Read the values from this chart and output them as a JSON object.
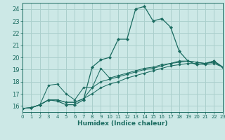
{
  "xlabel": "Humidex (Indice chaleur)",
  "xlim": [
    0,
    23
  ],
  "ylim": [
    15.5,
    24.5
  ],
  "xticks": [
    0,
    1,
    2,
    3,
    4,
    5,
    6,
    7,
    8,
    9,
    10,
    11,
    12,
    13,
    14,
    15,
    16,
    17,
    18,
    19,
    20,
    21,
    22,
    23
  ],
  "yticks": [
    16,
    17,
    18,
    19,
    20,
    21,
    22,
    23,
    24
  ],
  "bg_color": "#cce8e6",
  "grid_color": "#aacfcc",
  "line_color": "#1a6b60",
  "lines": [
    {
      "x": [
        0,
        1,
        2,
        3,
        4,
        5,
        6,
        7,
        8,
        9,
        10,
        11,
        12,
        13,
        14,
        15,
        16,
        17,
        18,
        19,
        20,
        21,
        22,
        23
      ],
      "y": [
        15.8,
        15.85,
        16.1,
        16.5,
        16.4,
        16.1,
        16.1,
        16.5,
        19.2,
        19.8,
        20.0,
        21.5,
        21.5,
        24.0,
        24.2,
        23.0,
        23.2,
        22.5,
        20.5,
        19.7,
        19.4,
        19.5,
        19.7,
        19.2
      ]
    },
    {
      "x": [
        0,
        1,
        2,
        3,
        4,
        5,
        6,
        7,
        8,
        9,
        10,
        11,
        12,
        13,
        14,
        15,
        16,
        17,
        18,
        19,
        20,
        21,
        22,
        23
      ],
      "y": [
        15.8,
        15.85,
        16.1,
        17.7,
        17.8,
        17.0,
        16.5,
        17.5,
        17.5,
        19.1,
        18.3,
        18.5,
        18.7,
        18.9,
        19.1,
        19.2,
        19.4,
        19.5,
        19.7,
        19.7,
        19.6,
        19.5,
        19.7,
        19.2
      ]
    },
    {
      "x": [
        0,
        1,
        2,
        3,
        4,
        5,
        6,
        7,
        8,
        9,
        10,
        11,
        12,
        13,
        14,
        15,
        16,
        17,
        18,
        19,
        20,
        21,
        22,
        23
      ],
      "y": [
        15.8,
        15.85,
        16.1,
        16.5,
        16.5,
        16.3,
        16.3,
        16.6,
        17.5,
        18.0,
        18.2,
        18.4,
        18.6,
        18.8,
        19.0,
        19.1,
        19.3,
        19.5,
        19.6,
        19.7,
        19.6,
        19.5,
        19.6,
        19.2
      ]
    },
    {
      "x": [
        0,
        1,
        2,
        3,
        4,
        5,
        6,
        7,
        8,
        9,
        10,
        11,
        12,
        13,
        14,
        15,
        16,
        17,
        18,
        19,
        20,
        21,
        22,
        23
      ],
      "y": [
        15.8,
        15.85,
        16.1,
        16.5,
        16.5,
        16.3,
        16.3,
        16.6,
        17.0,
        17.5,
        17.8,
        18.0,
        18.3,
        18.5,
        18.7,
        18.9,
        19.1,
        19.3,
        19.4,
        19.5,
        19.5,
        19.4,
        19.5,
        19.2
      ]
    }
  ]
}
